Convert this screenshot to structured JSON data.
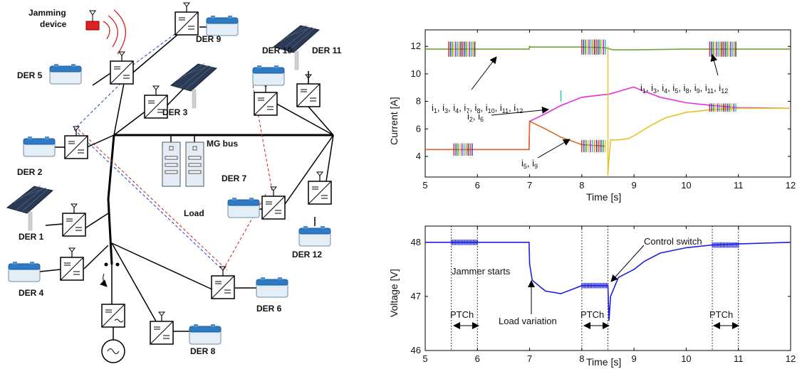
{
  "diagram": {
    "jamming_label_1": "Jamming",
    "jamming_label_2": "device",
    "bus_label": "MG bus",
    "load_label": "Load",
    "der_labels": {
      "der1": "DER 1",
      "der2": "DER 2",
      "der3": "DER 3",
      "der4": "DER 4",
      "der5": "DER 5",
      "der6": "DER 6",
      "der7": "DER 7",
      "der8": "DER 8",
      "der9": "DER 9",
      "der10": "DER 10",
      "der11": "DER 11",
      "der12": "DER 12"
    }
  },
  "chart_data": [
    {
      "type": "line",
      "ylabel": "Current [A]",
      "xlabel": "Time [s]",
      "xlim": [
        5,
        12
      ],
      "ylim": [
        2.5,
        13.2
      ],
      "xticks": [
        "5",
        "6",
        "7",
        "8",
        "9",
        "10",
        "11",
        "12"
      ],
      "yticks": [
        "4",
        "6",
        "8",
        "10",
        "12"
      ],
      "series": [
        {
          "color": "#6ea33a",
          "x": [
            5,
            6.99,
            7.0,
            7.02,
            7.3,
            8.0,
            8.45,
            8.6,
            9.0,
            10,
            12
          ],
          "y": [
            11.8,
            11.8,
            12.0,
            11.95,
            11.95,
            11.95,
            11.9,
            11.75,
            11.75,
            11.8,
            11.8
          ]
        },
        {
          "color": "#e333d6",
          "x": [
            5,
            6.99,
            7.0,
            7.3,
            7.6,
            8.0,
            8.45,
            8.5,
            9.0,
            9.05,
            9.5,
            10,
            10.5,
            11,
            12
          ],
          "y": [
            4.5,
            4.5,
            6.55,
            7.1,
            7.7,
            8.3,
            8.5,
            8.5,
            9.05,
            8.95,
            8.3,
            7.9,
            7.7,
            7.55,
            7.5
          ]
        },
        {
          "color": "#d96a2a",
          "x": [
            5,
            6.99,
            7.0,
            7.3,
            7.6,
            8.0,
            8.45
          ],
          "y": [
            4.5,
            4.5,
            6.55,
            6.0,
            5.4,
            4.85,
            4.75
          ]
        },
        {
          "color": "#e6c22a",
          "x": [
            8.5,
            8.55,
            8.7,
            8.9,
            9.0,
            9.3,
            9.6,
            10.0,
            10.5,
            11,
            12
          ],
          "y": [
            2.8,
            5.2,
            5.2,
            5.3,
            5.5,
            6.2,
            6.8,
            7.2,
            7.4,
            7.5,
            7.5
          ]
        }
      ],
      "annotations": [
        {
          "text": "i_1, i_3, i_4, i_7, i_8, i_10, i_11, i_12"
        },
        {
          "text": "i_2, i_6"
        },
        {
          "text": "i_5, i_9"
        },
        {
          "text": "i_1, i_3, i_4, i_5, i_8, i_9, i_11, i_12"
        }
      ]
    },
    {
      "type": "line",
      "ylabel": "Voltage [V]",
      "xlabel": "Time [s]",
      "xlim": [
        5,
        12
      ],
      "ylim": [
        46,
        48.3
      ],
      "xticks": [
        "5",
        "6",
        "7",
        "8",
        "9",
        "10",
        "11",
        "12"
      ],
      "yticks": [
        "46",
        "47",
        "48"
      ],
      "series": [
        {
          "color": "#1f1fe0",
          "x": [
            5,
            6.99,
            7.0,
            7.05,
            7.3,
            7.6,
            8.0,
            8.5,
            8.52,
            8.55,
            8.7,
            8.9,
            9.0,
            9.2,
            9.5,
            10,
            10.5,
            11,
            12
          ],
          "y": [
            48.0,
            48.0,
            47.6,
            47.3,
            47.1,
            47.05,
            47.2,
            47.2,
            46.55,
            47.0,
            47.35,
            47.45,
            47.5,
            47.65,
            47.8,
            47.9,
            47.95,
            47.97,
            48.0
          ]
        }
      ],
      "vlines": [
        5.5,
        6.0,
        8.0,
        8.5,
        10.5,
        11.0
      ],
      "annotations": [
        {
          "text": "Jammer starts"
        },
        {
          "text": "Load variation"
        },
        {
          "text": "Control switch"
        },
        {
          "text": "PTCh"
        },
        {
          "text": "PTCh"
        },
        {
          "text": "PTCh"
        }
      ]
    }
  ]
}
